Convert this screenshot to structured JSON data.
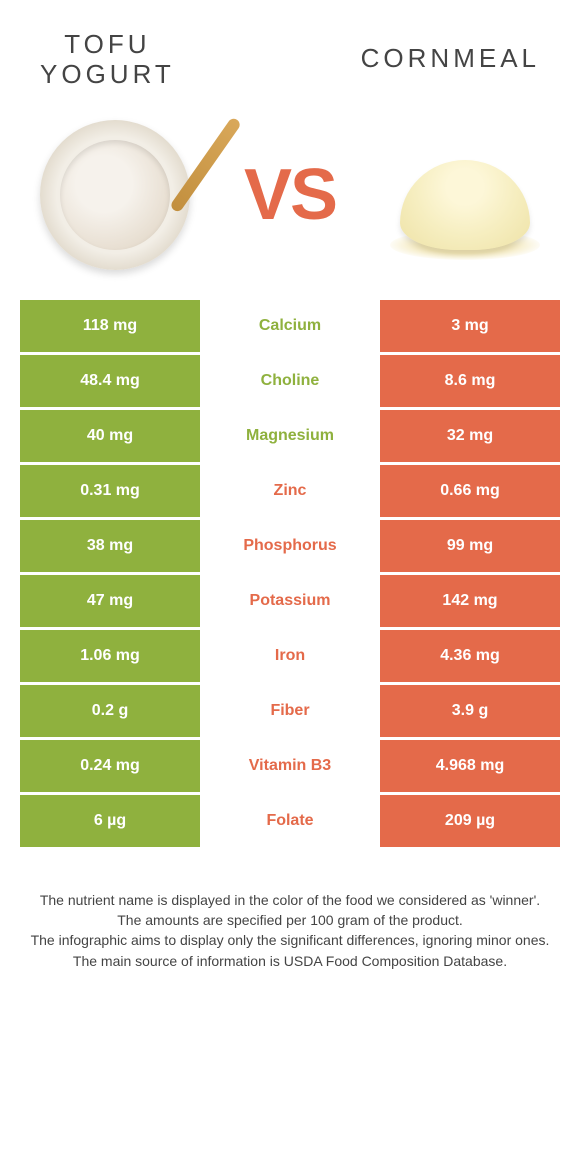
{
  "header": {
    "left_line1": "TOFU",
    "left_line2": "YOGURT",
    "right": "CORNMEAL"
  },
  "vs_label": "VS",
  "colors": {
    "left_cell": "#8fb13e",
    "right_cell": "#e46a4a",
    "mid_left_text": "#8fb13e",
    "mid_right_text": "#e46a4a",
    "background": "#ffffff"
  },
  "rows": [
    {
      "left": "118 mg",
      "mid": "Calcium",
      "right": "3 mg",
      "winner": "left"
    },
    {
      "left": "48.4 mg",
      "mid": "Choline",
      "right": "8.6 mg",
      "winner": "left"
    },
    {
      "left": "40 mg",
      "mid": "Magnesium",
      "right": "32 mg",
      "winner": "left"
    },
    {
      "left": "0.31 mg",
      "mid": "Zinc",
      "right": "0.66 mg",
      "winner": "right"
    },
    {
      "left": "38 mg",
      "mid": "Phosphorus",
      "right": "99 mg",
      "winner": "right"
    },
    {
      "left": "47 mg",
      "mid": "Potassium",
      "right": "142 mg",
      "winner": "right"
    },
    {
      "left": "1.06 mg",
      "mid": "Iron",
      "right": "4.36 mg",
      "winner": "right"
    },
    {
      "left": "0.2 g",
      "mid": "Fiber",
      "right": "3.9 g",
      "winner": "right"
    },
    {
      "left": "0.24 mg",
      "mid": "Vitamin B3",
      "right": "4.968 mg",
      "winner": "right"
    },
    {
      "left": "6 µg",
      "mid": "Folate",
      "right": "209 µg",
      "winner": "right"
    }
  ],
  "footer": {
    "line1": "The nutrient name is displayed in the color of the food we considered as 'winner'.",
    "line2": "The amounts are specified per 100 gram of the product.",
    "line3": "The infographic aims to display only the significant differences, ignoring minor ones.",
    "line4": "The main source of information is USDA Food Composition Database."
  }
}
